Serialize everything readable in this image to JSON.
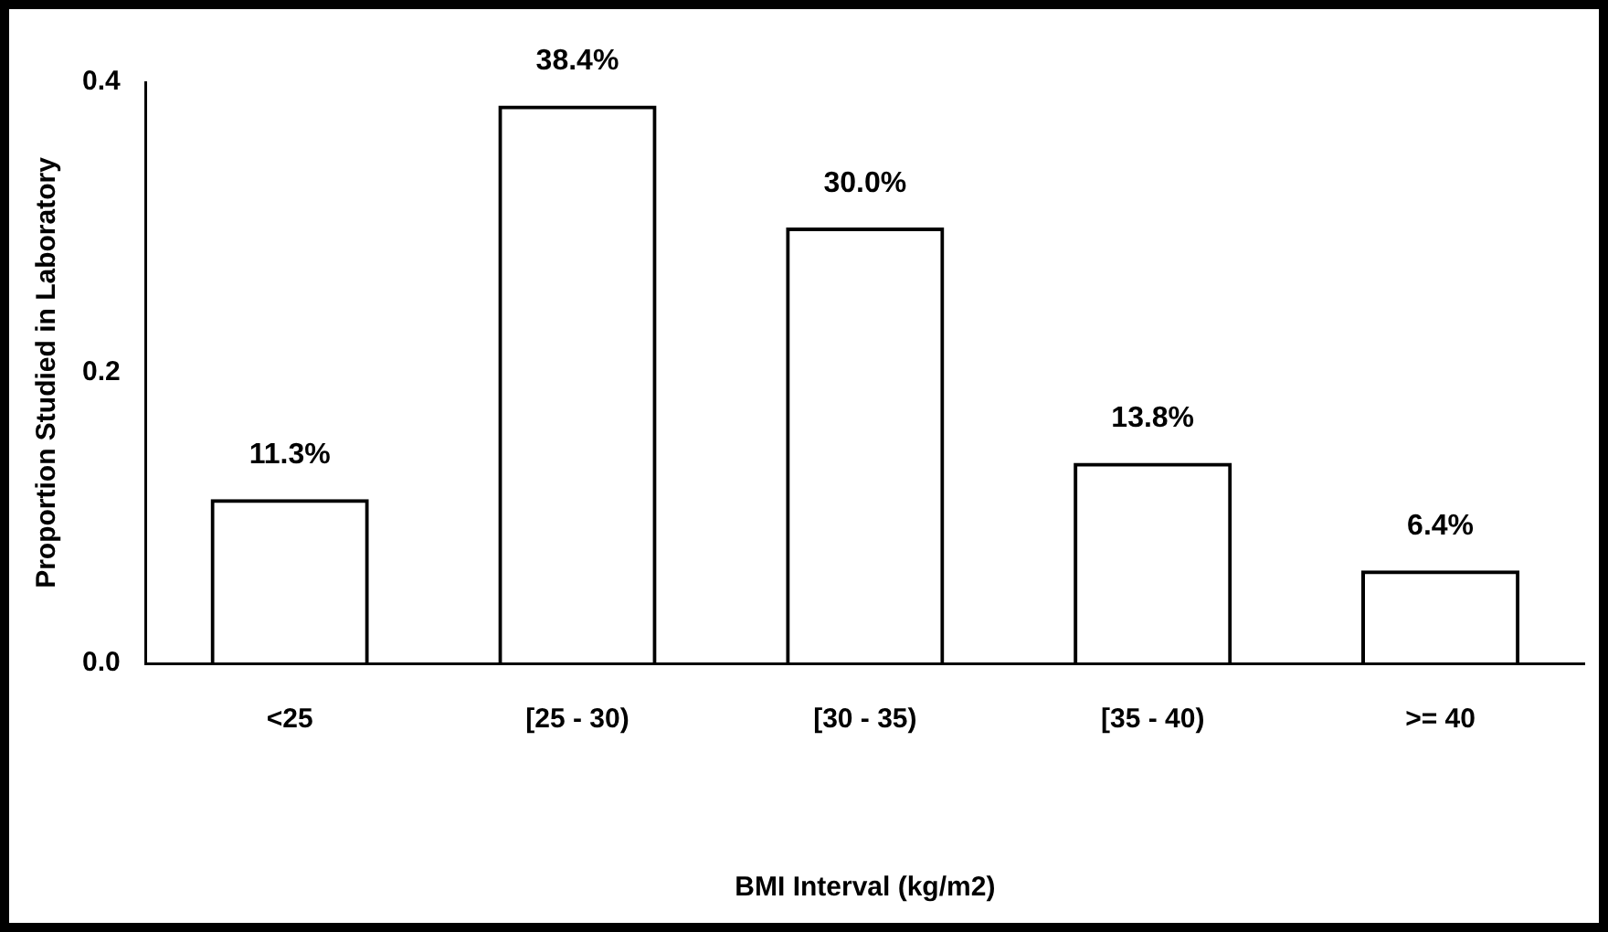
{
  "chart_data": {
    "type": "bar",
    "xlabel": "BMI Interval (kg/m2)",
    "ylabel": "Proportion Studied in Laboratory",
    "categories": [
      "<25",
      "[25 - 30)",
      "[30 - 35)",
      "[35 - 40)",
      ">= 40"
    ],
    "values": [
      0.113,
      0.384,
      0.3,
      0.138,
      0.064
    ],
    "value_labels": [
      "11.3%",
      "38.4%",
      "30.0%",
      "13.8%",
      "6.4%"
    ],
    "color": "#000000",
    "ylim": [
      0,
      0.4
    ],
    "yticks": [
      {
        "value": 0,
        "label": "0.0"
      },
      {
        "value": 0.2,
        "label": "0.2"
      },
      {
        "value": 0.4,
        "label": "0.4"
      }
    ],
    "grid": false,
    "legend": false
  }
}
